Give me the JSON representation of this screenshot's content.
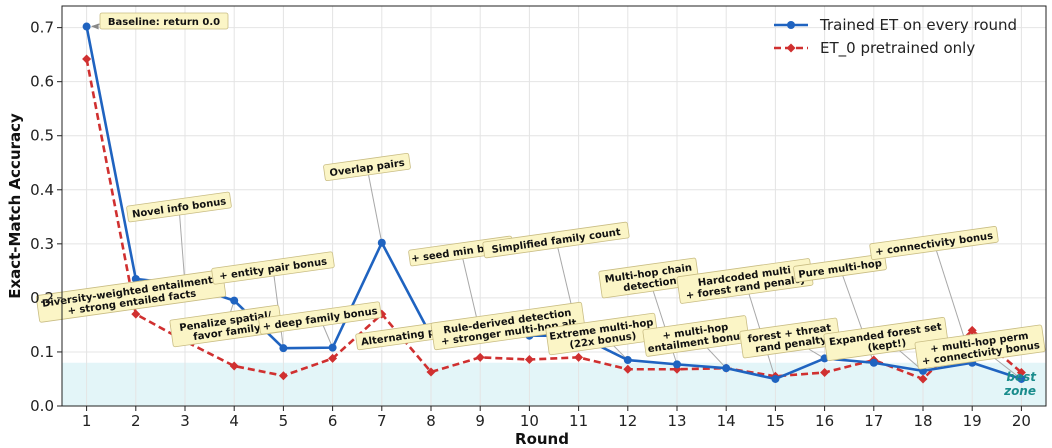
{
  "chart_data": {
    "type": "line",
    "xlabel": "Round",
    "ylabel": "Exact-Match Accuracy",
    "x": [
      1,
      2,
      3,
      4,
      5,
      6,
      7,
      8,
      9,
      10,
      11,
      12,
      13,
      14,
      15,
      16,
      17,
      18,
      19,
      20
    ],
    "xlim": [
      0.5,
      20.5
    ],
    "ylim": [
      0.0,
      0.74
    ],
    "yticks": [
      0.0,
      0.1,
      0.2,
      0.3,
      0.4,
      0.5,
      0.6,
      0.7
    ],
    "grid": true,
    "legend_position": "top-right",
    "colors": {
      "trained": "#1f63c0",
      "pretrained": "#d03030",
      "zone": "#e3f5f8",
      "zone_text": "#1a8c8c",
      "annotation_bg": "#fbf5c6",
      "annotation_border": "#c9bd84"
    },
    "series": [
      {
        "name": "Trained ET on every round",
        "style": "solid-circle",
        "values": [
          0.702,
          0.235,
          0.225,
          0.195,
          0.107,
          0.108,
          0.302,
          0.13,
          0.135,
          0.13,
          0.13,
          0.085,
          0.077,
          0.07,
          0.05,
          0.088,
          0.08,
          0.065,
          0.08,
          0.05
        ]
      },
      {
        "name": "ET_0 pretrained only",
        "style": "dashed-diamond",
        "values": [
          0.642,
          0.17,
          0.12,
          0.074,
          0.056,
          0.088,
          0.17,
          0.063,
          0.09,
          0.086,
          0.09,
          0.068,
          0.068,
          0.07,
          0.055,
          0.062,
          0.085,
          0.05,
          0.14,
          0.062
        ]
      }
    ],
    "best_zone": {
      "y_range": [
        0.0,
        0.08
      ],
      "label_line1": "best",
      "label_line2": "zone"
    },
    "annotations": [
      {
        "round": 1,
        "lines": [
          "Baseline: return 0.0"
        ]
      },
      {
        "round": 2,
        "lines": [
          "Diversity-weighted entailments",
          "+ strong entailed facts"
        ]
      },
      {
        "round": 3,
        "lines": [
          "Novel info bonus"
        ]
      },
      {
        "round": 4,
        "lines": [
          "Penalize spatial/",
          "favor family"
        ]
      },
      {
        "round": 5,
        "lines": [
          "+ entity pair bonus"
        ]
      },
      {
        "round": 6,
        "lines": [
          "+ deep family bonus"
        ]
      },
      {
        "round": 7,
        "lines": [
          "Overlap pairs"
        ]
      },
      {
        "round": 8,
        "lines": [
          "Alternating phases"
        ]
      },
      {
        "round": 9,
        "lines": [
          "+ seed min bonus"
        ]
      },
      {
        "round": 10,
        "lines": [
          "Rule-derived detection",
          "+ stronger multi-hop alt"
        ]
      },
      {
        "round": 11,
        "lines": [
          "Simplified family count"
        ]
      },
      {
        "round": 12,
        "lines": [
          "Extreme multi-hop",
          "(22x bonus)"
        ]
      },
      {
        "round": 13,
        "lines": [
          "Multi-hop chain",
          "detection"
        ]
      },
      {
        "round": 14,
        "lines": [
          "+ multi-hop",
          "entailment bonus"
        ]
      },
      {
        "round": 15,
        "lines": [
          "Hardcoded multi",
          "+ forest rand penalty"
        ]
      },
      {
        "round": 16,
        "lines": [
          "forest + threat",
          "rand penalty"
        ]
      },
      {
        "round": 17,
        "lines": [
          "Pure multi-hop"
        ]
      },
      {
        "round": 18,
        "lines": [
          "Expanded forest set",
          "(kept!)"
        ]
      },
      {
        "round": 19,
        "lines": [
          "+ connectivity bonus"
        ]
      },
      {
        "round": 20,
        "lines": [
          "+ multi-hop perm",
          "+ connectivity bonus"
        ]
      }
    ]
  }
}
